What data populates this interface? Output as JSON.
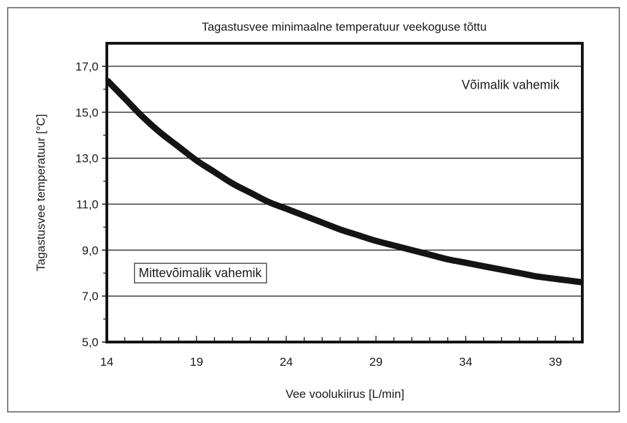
{
  "chart_data": {
    "type": "line",
    "title": "Tagastusvee minimaalne temperatuur veekoguse tõttu",
    "xlabel": "Vee voolukiirus [L/min]",
    "ylabel": "Tagastusvee temperatuur [°C]",
    "xlim": [
      14,
      40.5
    ],
    "ylim": [
      5,
      18
    ],
    "x_ticks": [
      14,
      19,
      24,
      29,
      34,
      39
    ],
    "x_tick_labels": [
      "14",
      "19",
      "24",
      "29",
      "34",
      "39"
    ],
    "y_ticks": [
      5,
      7,
      9,
      11,
      13,
      15,
      17
    ],
    "y_tick_labels": [
      "5,0",
      "7,0",
      "9,0",
      "11,0",
      "13,0",
      "15,0",
      "17,0"
    ],
    "grid": "horizontal",
    "series": [
      {
        "x": [
          14,
          15,
          16,
          17,
          18,
          19,
          20,
          21,
          22,
          23,
          24,
          25,
          26,
          27,
          28,
          29,
          30,
          31,
          32,
          33,
          34,
          35,
          36,
          37,
          38,
          39,
          40.5
        ],
        "y": [
          16.4,
          15.6,
          14.8,
          14.1,
          13.5,
          12.9,
          12.4,
          11.9,
          11.5,
          11.1,
          10.8,
          10.5,
          10.2,
          9.9,
          9.65,
          9.4,
          9.2,
          9.0,
          8.8,
          8.6,
          8.45,
          8.3,
          8.15,
          8.0,
          7.85,
          7.75,
          7.6
        ]
      }
    ],
    "annotations": [
      {
        "text": "Võimalik vahemik",
        "x": 36.5,
        "y": 16.2
      },
      {
        "text": "Mittevõimalik vahemik",
        "x": 19.2,
        "y": 8.0,
        "boxed": true
      }
    ],
    "colors": {
      "line": "#141414",
      "grid": "#2a2a2a",
      "frame": "#141414",
      "outer_border": "#5a5a5a",
      "text": "#1a1a1a"
    }
  }
}
